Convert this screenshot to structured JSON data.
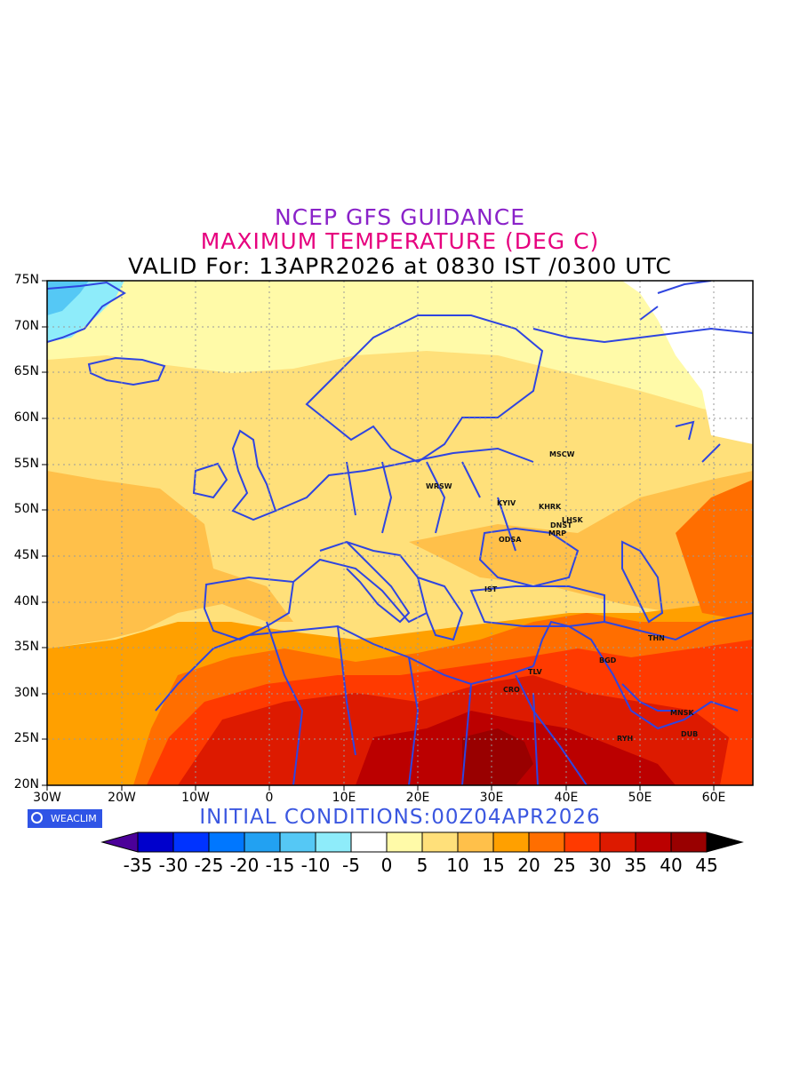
{
  "colors": {
    "title1": "#8a22c9",
    "title2": "#e6007e",
    "title3": "#000000",
    "initial_conditions": "#3b57e0",
    "border": "#2f45e0",
    "grid": "#9a9a9a"
  },
  "titles": {
    "line1": "NCEP GFS GUIDANCE",
    "line2": "MAXIMUM TEMPERATURE (DEG C)",
    "line3": "VALID For: 13APR2026 at 0830 IST /0300 UTC"
  },
  "map": {
    "lat_labels": [
      "75N",
      "70N",
      "65N",
      "60N",
      "55N",
      "50N",
      "45N",
      "40N",
      "35N",
      "30N",
      "25N",
      "20N"
    ],
    "lon_labels": [
      "30W",
      "20W",
      "10W",
      "0",
      "10E",
      "20E",
      "30E",
      "40E",
      "50E",
      "60E"
    ],
    "cities": [
      {
        "code": "MSCW"
      },
      {
        "code": "WRSW"
      },
      {
        "code": "KYIV"
      },
      {
        "code": "KHRK"
      },
      {
        "code": "LHSK"
      },
      {
        "code": "DNST"
      },
      {
        "code": "MRP"
      },
      {
        "code": "ODSA"
      },
      {
        "code": "IST"
      },
      {
        "code": "THN"
      },
      {
        "code": "BGD"
      },
      {
        "code": "TLV"
      },
      {
        "code": "CRO"
      },
      {
        "code": "MNSK"
      },
      {
        "code": "RYH"
      },
      {
        "code": "DUB"
      }
    ]
  },
  "badge": {
    "icon": "weaclim-logo-icon",
    "label": "WEACLIM"
  },
  "initial_conditions": "INITIAL CONDITIONS:00Z04APR2026",
  "colorbar": {
    "labels": [
      "-35",
      "-30",
      "-25",
      "-20",
      "-15",
      "-10",
      "-5",
      "0",
      "5",
      "10",
      "15",
      "20",
      "25",
      "30",
      "35",
      "40",
      "45"
    ],
    "colors": [
      "#4b0099",
      "#0000cc",
      "#0033ff",
      "#0077ff",
      "#22a1f2",
      "#55c8f5",
      "#8eecfa",
      "#ffffff",
      "#fffaa8",
      "#ffe07a",
      "#ffc04a",
      "#ffa000",
      "#ff6e00",
      "#ff3a00",
      "#dd1a00",
      "#bb0000",
      "#990000",
      "#000000"
    ]
  }
}
